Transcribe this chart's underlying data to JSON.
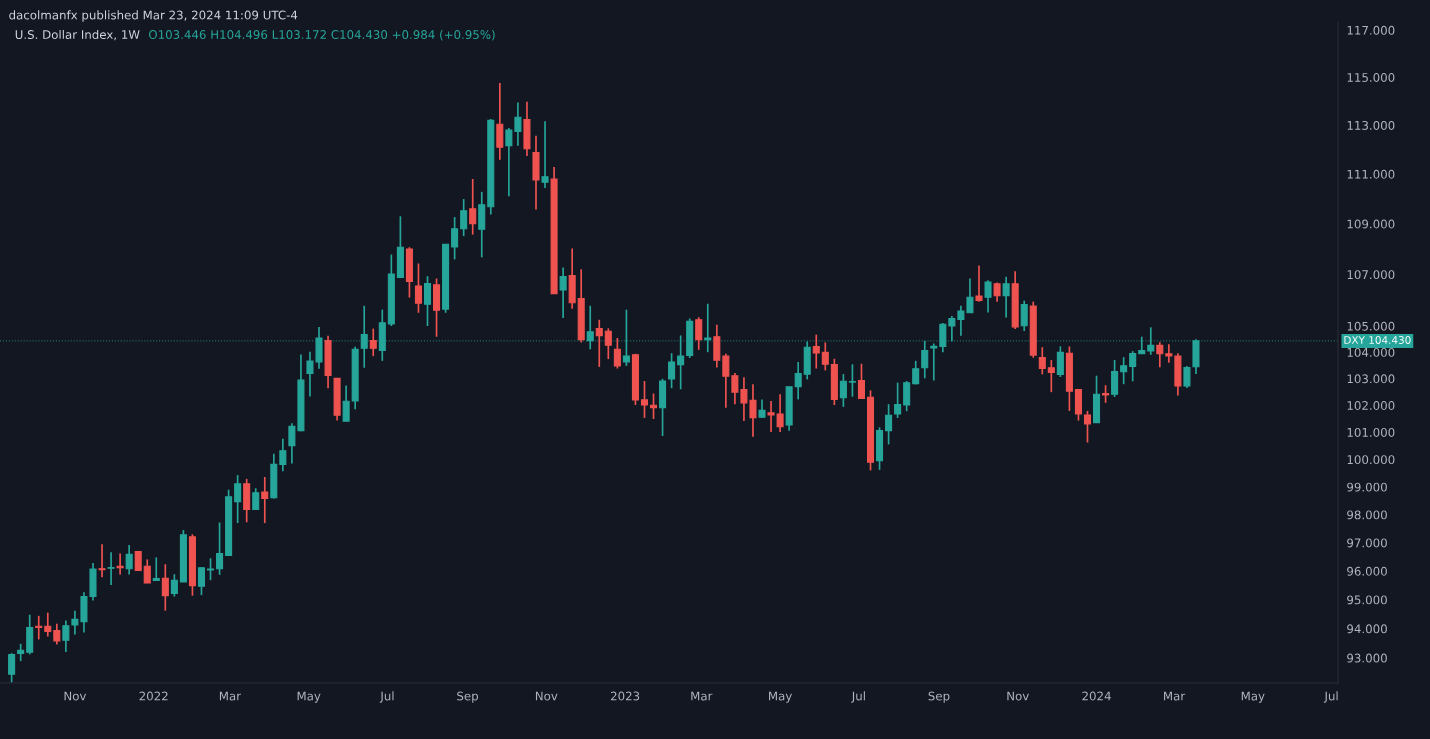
{
  "chart_data": {
    "type": "candlestick",
    "title": "U.S. Dollar Index, 1W",
    "subtitle": "dacolmanfx published Mar 23, 2024 11:09 UTC-4",
    "annotations": [
      "O103.446 H104.496 L103.172 C104.430 +0.984 (+0.95%)"
    ],
    "x": [
      "2021-09-13",
      "2021-09-20",
      "2021-09-27",
      "2021-10-04",
      "2021-10-11",
      "2021-10-18",
      "2021-10-25",
      "2021-11-01",
      "2021-11-08",
      "2021-11-15",
      "2021-11-22",
      "2021-11-29",
      "2021-12-06",
      "2021-12-13",
      "2021-12-20",
      "2021-12-27",
      "2022-01-03",
      "2022-01-10",
      "2022-01-17",
      "2022-01-24",
      "2022-01-31",
      "2022-02-07",
      "2022-02-14",
      "2022-02-21",
      "2022-02-28",
      "2022-03-07",
      "2022-03-14",
      "2022-03-21",
      "2022-03-28",
      "2022-04-04",
      "2022-04-11",
      "2022-04-18",
      "2022-04-25",
      "2022-05-02",
      "2022-05-09",
      "2022-05-16",
      "2022-05-23",
      "2022-05-30",
      "2022-06-06",
      "2022-06-13",
      "2022-06-20",
      "2022-06-27",
      "2022-07-04",
      "2022-07-11",
      "2022-07-18",
      "2022-07-25",
      "2022-08-01",
      "2022-08-08",
      "2022-08-15",
      "2022-08-22",
      "2022-08-29",
      "2022-09-05",
      "2022-09-12",
      "2022-09-19",
      "2022-09-26",
      "2022-10-03",
      "2022-10-10",
      "2022-10-17",
      "2022-10-24",
      "2022-10-31",
      "2022-11-07",
      "2022-11-14",
      "2022-11-21",
      "2022-11-28",
      "2022-12-05",
      "2022-12-12",
      "2022-12-19",
      "2022-12-26",
      "2023-01-02",
      "2023-01-09",
      "2023-01-16",
      "2023-01-23",
      "2023-01-30",
      "2023-02-06",
      "2023-02-13",
      "2023-02-20",
      "2023-02-27",
      "2023-03-06",
      "2023-03-13",
      "2023-03-20",
      "2023-03-27",
      "2023-04-03",
      "2023-04-10",
      "2023-04-17",
      "2023-04-24",
      "2023-05-01",
      "2023-05-08",
      "2023-05-15",
      "2023-05-22",
      "2023-05-29",
      "2023-06-05",
      "2023-06-12",
      "2023-06-19",
      "2023-06-26",
      "2023-07-03",
      "2023-07-10",
      "2023-07-17",
      "2023-07-24",
      "2023-07-31",
      "2023-08-07",
      "2023-08-14",
      "2023-08-21",
      "2023-08-28",
      "2023-09-04",
      "2023-09-11",
      "2023-09-18",
      "2023-09-25",
      "2023-10-02",
      "2023-10-09",
      "2023-10-16",
      "2023-10-23",
      "2023-10-30",
      "2023-11-06",
      "2023-11-13",
      "2023-11-20",
      "2023-11-27",
      "2023-12-04",
      "2023-12-11",
      "2023-12-18",
      "2023-12-25",
      "2024-01-01",
      "2024-01-08",
      "2024-01-15",
      "2024-01-22",
      "2024-01-29",
      "2024-02-05",
      "2024-02-12",
      "2024-02-19",
      "2024-02-26",
      "2024-03-04",
      "2024-03-11",
      "2024-03-18"
    ],
    "ohlc": [
      [
        92.45,
        93.16,
        92.17,
        93.11
      ],
      [
        93.15,
        93.48,
        92.89,
        93.26
      ],
      [
        93.19,
        94.48,
        93.12,
        94.04
      ],
      [
        94.08,
        94.44,
        93.63,
        94.04
      ],
      [
        94.08,
        94.55,
        93.73,
        93.9
      ],
      [
        93.93,
        94.17,
        93.46,
        93.58
      ],
      [
        93.6,
        94.28,
        93.2,
        94.1
      ],
      [
        94.13,
        94.62,
        93.8,
        94.32
      ],
      [
        94.24,
        95.26,
        93.87,
        95.11
      ],
      [
        95.11,
        96.28,
        94.97,
        96.07
      ],
      [
        96.08,
        96.95,
        95.78,
        96.05
      ],
      [
        96.1,
        96.66,
        95.51,
        96.12
      ],
      [
        96.17,
        96.62,
        95.88,
        96.12
      ],
      [
        96.08,
        96.92,
        95.88,
        96.59
      ],
      [
        96.69,
        96.71,
        96.0,
        96.02
      ],
      [
        96.17,
        96.41,
        95.58,
        95.58
      ],
      [
        95.67,
        96.48,
        95.65,
        95.74
      ],
      [
        95.75,
        96.24,
        94.62,
        95.14
      ],
      [
        95.22,
        95.89,
        95.11,
        95.68
      ],
      [
        95.62,
        97.45,
        95.62,
        97.28
      ],
      [
        97.21,
        97.3,
        95.14,
        95.49
      ],
      [
        95.47,
        96.14,
        95.16,
        96.11
      ],
      [
        96.04,
        96.45,
        95.68,
        96.07
      ],
      [
        96.08,
        97.72,
        95.87,
        96.62
      ],
      [
        96.55,
        98.9,
        96.55,
        98.64
      ],
      [
        98.47,
        99.43,
        97.7,
        99.11
      ],
      [
        99.11,
        99.29,
        97.73,
        98.19
      ],
      [
        98.19,
        98.95,
        98.17,
        98.79
      ],
      [
        98.81,
        99.36,
        97.7,
        98.58
      ],
      [
        98.61,
        100.21,
        98.58,
        99.82
      ],
      [
        99.82,
        100.76,
        99.57,
        100.32
      ],
      [
        100.5,
        101.33,
        99.85,
        101.22
      ],
      [
        101.06,
        103.91,
        101.04,
        102.95
      ],
      [
        103.19,
        104.02,
        102.33,
        103.66
      ],
      [
        103.63,
        104.96,
        103.37,
        104.54
      ],
      [
        104.44,
        104.63,
        102.64,
        103.12
      ],
      [
        103.01,
        103.02,
        101.43,
        101.63
      ],
      [
        101.41,
        102.74,
        101.41,
        102.15
      ],
      [
        102.16,
        104.21,
        101.85,
        104.11
      ],
      [
        104.15,
        105.78,
        103.41,
        104.67
      ],
      [
        104.44,
        104.9,
        103.85,
        104.15
      ],
      [
        104.07,
        105.63,
        103.67,
        105.12
      ],
      [
        105.08,
        107.78,
        105.0,
        107.01
      ],
      [
        106.88,
        109.3,
        106.88,
        108.07
      ],
      [
        108.0,
        108.07,
        106.1,
        106.73
      ],
      [
        106.55,
        107.43,
        105.51,
        105.88
      ],
      [
        105.84,
        106.93,
        105.0,
        106.64
      ],
      [
        106.59,
        106.84,
        104.59,
        105.61
      ],
      [
        105.65,
        108.19,
        105.51,
        108.19
      ],
      [
        108.08,
        109.27,
        107.59,
        108.8
      ],
      [
        108.8,
        109.99,
        108.51,
        109.52
      ],
      [
        109.6,
        110.8,
        108.57,
        109.0
      ],
      [
        108.78,
        110.28,
        107.67,
        109.76
      ],
      [
        109.68,
        113.26,
        109.37,
        113.2
      ],
      [
        113.04,
        114.76,
        111.58,
        112.1
      ],
      [
        112.16,
        112.89,
        110.1,
        112.8
      ],
      [
        112.74,
        113.94,
        112.16,
        113.33
      ],
      [
        113.24,
        113.97,
        111.74,
        112.03
      ],
      [
        111.88,
        112.57,
        109.57,
        110.76
      ],
      [
        110.67,
        113.16,
        110.44,
        110.89
      ],
      [
        110.8,
        111.29,
        106.25,
        106.25
      ],
      [
        106.39,
        107.27,
        105.31,
        106.92
      ],
      [
        106.96,
        108.02,
        105.67,
        105.9
      ],
      [
        106.06,
        107.2,
        104.37,
        104.48
      ],
      [
        104.44,
        105.78,
        104.11,
        104.78
      ],
      [
        104.9,
        105.24,
        103.44,
        104.63
      ],
      [
        104.8,
        104.91,
        103.74,
        104.27
      ],
      [
        104.11,
        104.54,
        103.38,
        103.48
      ],
      [
        103.63,
        105.63,
        103.48,
        103.85
      ],
      [
        103.9,
        103.94,
        102.01,
        102.2
      ],
      [
        102.2,
        102.91,
        101.53,
        102.01
      ],
      [
        102.0,
        102.44,
        101.49,
        101.91
      ],
      [
        101.91,
        102.99,
        100.86,
        102.91
      ],
      [
        102.99,
        103.96,
        102.64,
        103.63
      ],
      [
        103.53,
        104.64,
        102.6,
        103.85
      ],
      [
        103.88,
        105.29,
        103.78,
        105.18
      ],
      [
        105.24,
        105.34,
        104.09,
        104.48
      ],
      [
        104.48,
        105.86,
        104.0,
        104.54
      ],
      [
        104.59,
        105.05,
        103.42,
        103.7
      ],
      [
        103.85,
        103.94,
        101.91,
        103.09
      ],
      [
        103.11,
        103.21,
        102.04,
        102.49
      ],
      [
        102.59,
        103.05,
        101.42,
        102.09
      ],
      [
        102.19,
        102.79,
        100.83,
        101.54
      ],
      [
        101.56,
        102.22,
        101.53,
        101.81
      ],
      [
        101.72,
        102.16,
        101.01,
        101.64
      ],
      [
        101.67,
        102.41,
        101.01,
        101.2
      ],
      [
        101.27,
        102.69,
        101.05,
        102.69
      ],
      [
        102.7,
        103.63,
        102.22,
        103.19
      ],
      [
        103.17,
        104.41,
        102.97,
        104.19
      ],
      [
        104.21,
        104.67,
        103.38,
        103.97
      ],
      [
        104.0,
        104.37,
        103.31,
        103.54
      ],
      [
        103.53,
        103.75,
        102.01,
        102.22
      ],
      [
        102.28,
        103.17,
        101.94,
        102.9
      ],
      [
        102.87,
        103.54,
        102.32,
        102.89
      ],
      [
        102.93,
        103.56,
        102.26,
        102.26
      ],
      [
        102.3,
        102.56,
        99.6,
        99.9
      ],
      [
        99.95,
        101.18,
        99.62,
        101.06
      ],
      [
        101.06,
        102.04,
        100.55,
        101.63
      ],
      [
        101.68,
        102.85,
        101.53,
        102.03
      ],
      [
        102.01,
        102.91,
        101.78,
        102.84
      ],
      [
        102.81,
        103.67,
        102.78,
        103.37
      ],
      [
        103.41,
        104.43,
        103.01,
        104.06
      ],
      [
        104.16,
        104.33,
        102.93,
        104.22
      ],
      [
        104.22,
        105.12,
        104.0,
        105.07
      ],
      [
        105.0,
        105.39,
        104.41,
        105.29
      ],
      [
        105.25,
        105.78,
        104.63,
        105.58
      ],
      [
        105.51,
        106.84,
        105.51,
        106.11
      ],
      [
        106.16,
        107.35,
        105.94,
        105.99
      ],
      [
        106.11,
        106.77,
        105.52,
        106.7
      ],
      [
        106.63,
        106.68,
        105.94,
        106.17
      ],
      [
        106.17,
        106.91,
        105.33,
        106.63
      ],
      [
        106.63,
        107.12,
        104.89,
        104.96
      ],
      [
        105.01,
        105.98,
        104.81,
        105.83
      ],
      [
        105.77,
        105.94,
        103.79,
        103.89
      ],
      [
        103.8,
        104.19,
        103.16,
        103.38
      ],
      [
        103.41,
        103.7,
        102.49,
        103.23
      ],
      [
        103.16,
        104.22,
        103.06,
        104.0
      ],
      [
        103.96,
        104.22,
        101.79,
        102.53
      ],
      [
        102.59,
        102.6,
        101.43,
        101.68
      ],
      [
        101.64,
        101.79,
        100.62,
        101.31
      ],
      [
        101.35,
        103.11,
        101.34,
        102.41
      ],
      [
        102.44,
        102.75,
        102.09,
        102.39
      ],
      [
        102.41,
        103.7,
        102.31,
        103.27
      ],
      [
        103.26,
        103.81,
        102.79,
        103.48
      ],
      [
        103.46,
        104.04,
        102.9,
        103.95
      ],
      [
        103.94,
        104.59,
        103.93,
        104.06
      ],
      [
        104.05,
        104.95,
        103.9,
        104.26
      ],
      [
        104.26,
        104.38,
        103.43,
        103.94
      ],
      [
        103.94,
        104.3,
        103.6,
        103.86
      ],
      [
        103.85,
        103.96,
        102.37,
        102.72
      ],
      [
        102.72,
        103.48,
        102.65,
        103.42
      ],
      [
        103.446,
        104.496,
        103.172,
        104.43
      ]
    ],
    "colors": [
      "#26a69a",
      "#26a69a",
      "#26a69a",
      "#ef5350",
      "#ef5350",
      "#ef5350",
      "#26a69a",
      "#26a69a",
      "#26a69a",
      "#26a69a",
      "#ef5350",
      "#26a69a",
      "#ef5350",
      "#26a69a",
      "#ef5350",
      "#ef5350",
      "#26a69a",
      "#ef5350",
      "#26a69a",
      "#26a69a",
      "#ef5350",
      "#26a69a",
      "#26a69a",
      "#26a69a",
      "#26a69a",
      "#26a69a",
      "#ef5350",
      "#26a69a",
      "#ef5350",
      "#26a69a",
      "#26a69a",
      "#26a69a",
      "#26a69a",
      "#26a69a",
      "#26a69a",
      "#ef5350",
      "#ef5350",
      "#26a69a",
      "#26a69a",
      "#26a69a",
      "#ef5350",
      "#26a69a",
      "#26a69a",
      "#26a69a",
      "#ef5350",
      "#ef5350",
      "#26a69a",
      "#ef5350",
      "#26a69a",
      "#26a69a",
      "#26a69a",
      "#ef5350",
      "#26a69a",
      "#26a69a",
      "#ef5350",
      "#26a69a",
      "#26a69a",
      "#ef5350",
      "#ef5350",
      "#26a69a",
      "#ef5350",
      "#26a69a",
      "#ef5350",
      "#ef5350",
      "#26a69a",
      "#ef5350",
      "#ef5350",
      "#ef5350",
      "#26a69a",
      "#ef5350",
      "#ef5350",
      "#ef5350",
      "#26a69a",
      "#26a69a",
      "#26a69a",
      "#26a69a",
      "#ef5350",
      "#26a69a",
      "#ef5350",
      "#ef5350",
      "#ef5350",
      "#ef5350",
      "#ef5350",
      "#26a69a",
      "#ef5350",
      "#ef5350",
      "#26a69a",
      "#26a69a",
      "#26a69a",
      "#ef5350",
      "#ef5350",
      "#ef5350",
      "#26a69a",
      "#26a69a",
      "#ef5350",
      "#ef5350",
      "#26a69a",
      "#26a69a",
      "#26a69a",
      "#26a69a",
      "#26a69a",
      "#26a69a",
      "#26a69a",
      "#26a69a",
      "#26a69a",
      "#26a69a",
      "#26a69a",
      "#ef5350",
      "#26a69a",
      "#ef5350",
      "#26a69a",
      "#ef5350",
      "#26a69a",
      "#ef5350",
      "#ef5350",
      "#ef5350",
      "#26a69a",
      "#ef5350",
      "#ef5350",
      "#ef5350",
      "#26a69a",
      "#ef5350",
      "#26a69a",
      "#26a69a",
      "#26a69a",
      "#26a69a",
      "#26a69a",
      "#ef5350",
      "#ef5350",
      "#ef5350",
      "#26a69a",
      "#26a69a"
    ],
    "log": "y",
    "grid": false,
    "xlim": [
      "2021-09-04",
      "2024-07-06"
    ],
    "xticks": [
      {
        "value": "2021-11-01",
        "label": "Nov"
      },
      {
        "value": "2022-01-01",
        "label": "2022"
      },
      {
        "value": "2022-03-01",
        "label": "Mar"
      },
      {
        "value": "2022-05-01",
        "label": "May"
      },
      {
        "value": "2022-07-01",
        "label": "Jul"
      },
      {
        "value": "2022-09-01",
        "label": "Sep"
      },
      {
        "value": "2022-11-01",
        "label": "Nov"
      },
      {
        "value": "2023-01-01",
        "label": "2023"
      },
      {
        "value": "2023-03-01",
        "label": "Mar"
      },
      {
        "value": "2023-05-01",
        "label": "May"
      },
      {
        "value": "2023-07-01",
        "label": "Jul"
      },
      {
        "value": "2023-09-01",
        "label": "Sep"
      },
      {
        "value": "2023-11-01",
        "label": "Nov"
      },
      {
        "value": "2024-01-01",
        "label": "2024"
      },
      {
        "value": "2024-03-01",
        "label": "Mar"
      },
      {
        "value": "2024-05-01",
        "label": "May"
      },
      {
        "value": "2024-07-01",
        "label": "Jul"
      }
    ],
    "ylim": [
      92.15,
      117.35
    ],
    "yticks": [
      {
        "value": 93,
        "label": "93.000"
      },
      {
        "value": 94,
        "label": "94.000"
      },
      {
        "value": 95,
        "label": "95.000"
      },
      {
        "value": 96,
        "label": "96.000"
      },
      {
        "value": 97,
        "label": "97.000"
      },
      {
        "value": 98,
        "label": "98.000"
      },
      {
        "value": 99,
        "label": "99.000"
      },
      {
        "value": 100,
        "label": "100.000"
      },
      {
        "value": 101,
        "label": "101.000"
      },
      {
        "value": 102,
        "label": "102.000"
      },
      {
        "value": 103,
        "label": "103.000"
      },
      {
        "value": 104,
        "label": "104.000"
      },
      {
        "value": 105,
        "label": "105.000"
      },
      {
        "value": 107,
        "label": "107.000"
      },
      {
        "value": 109,
        "label": "109.000"
      },
      {
        "value": 111,
        "label": "111.000"
      },
      {
        "value": 113,
        "label": "113.000"
      },
      {
        "value": 115,
        "label": "115.000"
      },
      {
        "value": 117,
        "label": "117.000"
      }
    ],
    "ref_lines": [
      {
        "axis": "y",
        "value": 104.43,
        "label": "DXY 104.430",
        "color": "#26a69a",
        "line_style": "dotted"
      }
    ]
  }
}
